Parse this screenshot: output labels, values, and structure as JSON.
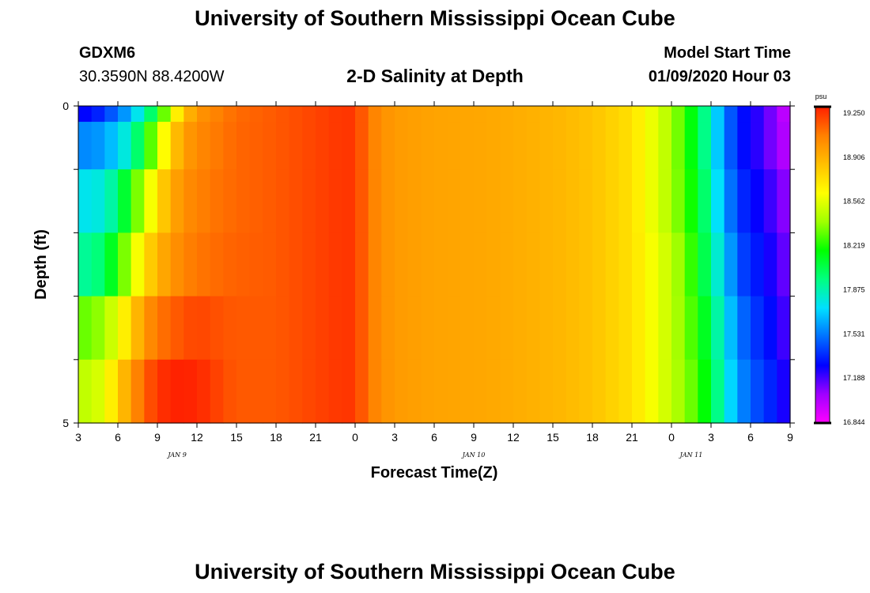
{
  "header": {
    "title": "University of Southern Mississippi Ocean Cube",
    "station": "GDXM6",
    "coordinates": "30.3590N 88.4200W",
    "subtitle": "2-D Salinity at Depth",
    "model_start_label": "Model Start Time",
    "model_start_value": "01/09/2020 Hour 03"
  },
  "footer": {
    "title": "University of Southern Mississippi Ocean Cube"
  },
  "colors": {
    "palette": [
      "#ff00ff",
      "#a000ff",
      "#0000ff",
      "#0070ff",
      "#00e0ff",
      "#00ff80",
      "#00ff00",
      "#a0ff00",
      "#ffff00",
      "#ffc000",
      "#ff8000",
      "#ff2000"
    ]
  },
  "chart_data": {
    "type": "heatmap",
    "title": "2-D Salinity at Depth",
    "xlabel": "Forecast Time(Z)",
    "ylabel": "Depth (ft)",
    "x_tick_labels": [
      "3",
      "6",
      "9",
      "12",
      "15",
      "18",
      "21",
      "0",
      "3",
      "6",
      "9",
      "12",
      "15",
      "18",
      "21",
      "0",
      "3",
      "6",
      "9"
    ],
    "date_labels": [
      {
        "text": "JAN 9",
        "tick_index": 2.5
      },
      {
        "text": "JAN 10",
        "tick_index": 10
      },
      {
        "text": "JAN 11",
        "tick_index": 15.5
      }
    ],
    "y_tick_labels": [
      "0",
      "5"
    ],
    "ylim": [
      0,
      5
    ],
    "y_minor_ticks": 5,
    "colorbar": {
      "unit": "psu",
      "min": 16.844,
      "max": 19.25,
      "labels": [
        "19.250",
        "18.906",
        "18.562",
        "18.219",
        "17.875",
        "17.531",
        "17.188",
        "16.844"
      ]
    },
    "depth_layers": [
      {
        "value": 0,
        "x": [
          3,
          4,
          5,
          6,
          7,
          8,
          9,
          10,
          11,
          12,
          13,
          14,
          15,
          18,
          21,
          23,
          24,
          25,
          26,
          27,
          30,
          33,
          36,
          39,
          42,
          45,
          48,
          50,
          51,
          52,
          53,
          54,
          55,
          56,
          57
        ],
        "salinity": [
          17.29,
          17.29,
          17.4,
          17.5,
          17.65,
          17.85,
          18.1,
          18.5,
          18.8,
          18.95,
          19.0,
          19.04,
          19.08,
          19.12,
          19.17,
          19.2,
          19.2,
          19.05,
          18.98,
          18.94,
          18.91,
          18.9,
          18.88,
          18.85,
          18.8,
          18.7,
          18.4,
          18.05,
          17.8,
          17.55,
          17.35,
          17.25,
          17.2,
          17.05,
          16.95
        ]
      },
      {
        "value": 0.5,
        "x": [
          3,
          4,
          5,
          6,
          7,
          8,
          9,
          10,
          11,
          12,
          13,
          14,
          15,
          18,
          21,
          23,
          24,
          25,
          26,
          27,
          30,
          33,
          36,
          39,
          42,
          45,
          48,
          50,
          51,
          52,
          53,
          54,
          55,
          56,
          57
        ],
        "salinity": [
          17.55,
          17.55,
          17.6,
          17.7,
          17.85,
          18.1,
          18.45,
          18.75,
          18.92,
          19.0,
          19.03,
          19.06,
          19.09,
          19.12,
          19.17,
          19.2,
          19.2,
          19.05,
          18.98,
          18.94,
          18.91,
          18.9,
          18.88,
          18.85,
          18.8,
          18.7,
          18.4,
          18.05,
          17.8,
          17.55,
          17.35,
          17.25,
          17.2,
          17.05,
          17.0
        ]
      },
      {
        "value": 1.5,
        "x": [
          3,
          4,
          5,
          6,
          7,
          8,
          9,
          10,
          11,
          12,
          13,
          14,
          15,
          18,
          21,
          23,
          24,
          25,
          26,
          27,
          30,
          33,
          36,
          39,
          42,
          45,
          48,
          50,
          51,
          52,
          53,
          54,
          55,
          56,
          57
        ],
        "salinity": [
          17.75,
          17.75,
          17.8,
          17.95,
          18.2,
          18.45,
          18.7,
          18.88,
          18.98,
          19.02,
          19.05,
          19.07,
          19.09,
          19.12,
          19.17,
          19.2,
          19.2,
          19.05,
          18.98,
          18.94,
          18.91,
          18.9,
          18.88,
          18.85,
          18.8,
          18.7,
          18.4,
          18.1,
          17.85,
          17.6,
          17.4,
          17.3,
          17.25,
          17.15,
          17.05
        ]
      },
      {
        "value": 2.5,
        "x": [
          3,
          4,
          5,
          6,
          7,
          8,
          9,
          10,
          11,
          12,
          13,
          14,
          15,
          18,
          21,
          23,
          24,
          25,
          26,
          27,
          30,
          33,
          36,
          39,
          42,
          45,
          48,
          50,
          51,
          52,
          53,
          54,
          55,
          56,
          57
        ],
        "salinity": [
          17.9,
          17.9,
          18.0,
          18.2,
          18.45,
          18.7,
          18.85,
          18.95,
          19.02,
          19.05,
          19.07,
          19.09,
          19.1,
          19.12,
          19.17,
          19.2,
          19.2,
          19.05,
          18.98,
          18.94,
          18.91,
          18.9,
          18.88,
          18.85,
          18.8,
          18.7,
          18.45,
          18.15,
          17.9,
          17.7,
          17.45,
          17.35,
          17.3,
          17.2,
          17.1
        ]
      },
      {
        "value": 3.5,
        "x": [
          3,
          4,
          5,
          6,
          7,
          8,
          9,
          10,
          11,
          12,
          13,
          14,
          15,
          18,
          21,
          23,
          24,
          25,
          26,
          27,
          30,
          33,
          36,
          39,
          42,
          45,
          48,
          50,
          51,
          52,
          53,
          54,
          55,
          56,
          57
        ],
        "salinity": [
          18.3,
          18.3,
          18.4,
          18.55,
          18.75,
          18.95,
          19.05,
          19.1,
          19.14,
          19.17,
          19.15,
          19.13,
          19.12,
          19.12,
          19.17,
          19.2,
          19.2,
          19.05,
          18.98,
          18.94,
          18.91,
          18.9,
          18.88,
          18.85,
          18.8,
          18.7,
          18.45,
          18.2,
          18.0,
          17.75,
          17.55,
          17.4,
          17.35,
          17.25,
          17.15
        ]
      },
      {
        "value": 4.5,
        "x": [
          3,
          4,
          5,
          6,
          7,
          8,
          9,
          10,
          11,
          12,
          13,
          14,
          15,
          18,
          21,
          23,
          24,
          25,
          26,
          27,
          30,
          33,
          36,
          39,
          42,
          45,
          48,
          50,
          51,
          52,
          53,
          54,
          55,
          56,
          57
        ],
        "salinity": [
          18.45,
          18.45,
          18.55,
          18.75,
          18.95,
          19.1,
          19.2,
          19.24,
          19.25,
          19.23,
          19.2,
          19.15,
          19.12,
          19.12,
          19.17,
          19.2,
          19.2,
          19.05,
          18.98,
          18.94,
          18.91,
          18.9,
          18.88,
          18.85,
          18.8,
          18.7,
          18.45,
          18.25,
          18.05,
          17.8,
          17.6,
          17.45,
          17.4,
          17.3,
          17.2
        ]
      }
    ]
  }
}
